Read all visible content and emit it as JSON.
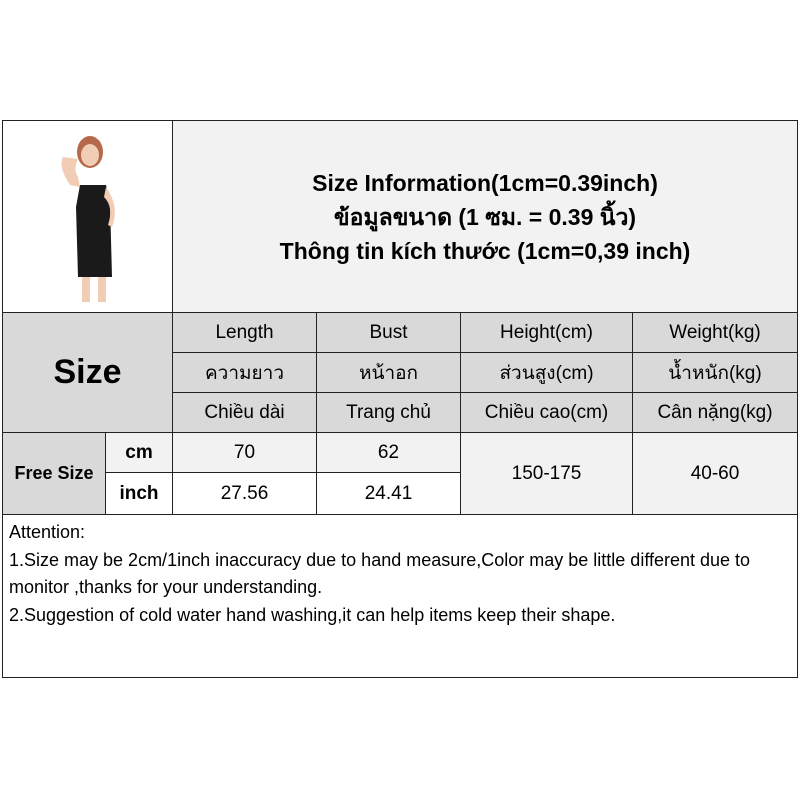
{
  "title": {
    "line1": "Size Information(1cm=0.39inch)",
    "line2": "ข้อมูลขนาด (1 ซม. = 0.39 นิ้ว)",
    "line3": "Thông tin kích thước (1cm=0,39 inch)"
  },
  "size_label": "Size",
  "columns": [
    {
      "en": "Length",
      "th": "ความยาว",
      "vi": "Chiều dài"
    },
    {
      "en": "Bust",
      "th": "หน้าอก",
      "vi": "Trang chủ"
    },
    {
      "en": "Height(cm)",
      "th": "ส่วนสูง(cm)",
      "vi": "Chiều cao(cm)"
    },
    {
      "en": "Weight(kg)",
      "th": "น้ำหนัก(kg)",
      "vi": "Cân nặng(kg)"
    }
  ],
  "row": {
    "size": "Free Size",
    "unit_cm": "cm",
    "unit_inch": "inch",
    "length_cm": "70",
    "bust_cm": "62",
    "length_inch": "27.56",
    "bust_inch": "24.41",
    "height": "150-175",
    "weight": "40-60"
  },
  "attention": {
    "heading": "Attention:",
    "line1": "1.Size may be 2cm/1inch inaccuracy due to hand measure,Color may be little different due to monitor ,thanks for your understanding.",
    "line2": "2.Suggestion of cold water hand washing,it can help items keep their shape."
  }
}
